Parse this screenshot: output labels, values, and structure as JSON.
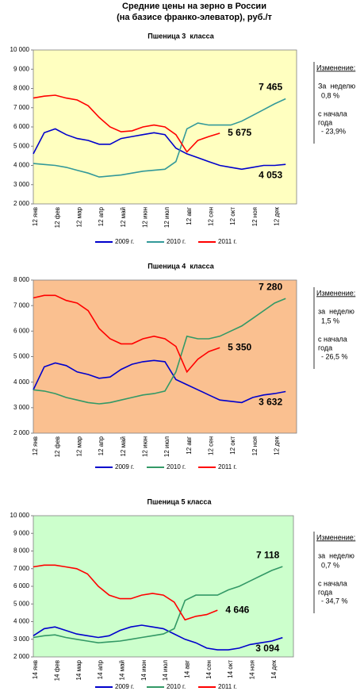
{
  "title": "Средние цены на зерно в России",
  "subtitle": "(на базисе франко-элеватор), руб./т",
  "chart_data": [
    {
      "type": "line",
      "title": "Пшеница 3  класса",
      "background": "#ffffc0",
      "categories": [
        "12 янв",
        null,
        "12 фев",
        null,
        "12 мар",
        null,
        "12 апр",
        null,
        "12 май",
        null,
        "12 июн",
        null,
        "12 июл",
        null,
        "12 авг",
        null,
        "12 сен",
        null,
        "12 окт",
        null,
        "12 ноя",
        null,
        "12 дек",
        null
      ],
      "ylim": [
        2000,
        10000
      ],
      "yticks": [
        {
          "value": 2000,
          "label": "2 000"
        },
        {
          "value": 3000,
          "label": "3 000"
        },
        {
          "value": 4000,
          "label": "4 000"
        },
        {
          "value": 5000,
          "label": "5 000"
        },
        {
          "value": 6000,
          "label": "6 000"
        },
        {
          "value": 7000,
          "label": "7 000"
        },
        {
          "value": 8000,
          "label": "8 000"
        },
        {
          "value": 9000,
          "label": "9 000"
        },
        {
          "value": 10000,
          "label": "10 000"
        }
      ],
      "series": [
        {
          "name": "2009 г.",
          "color": "#0000cc",
          "values": [
            4600,
            5700,
            5900,
            5600,
            5400,
            5300,
            5100,
            5100,
            5400,
            5500,
            5600,
            5700,
            5600,
            4900,
            4600,
            4400,
            4200,
            4000,
            3900,
            3800,
            3900,
            4000,
            4000,
            4053
          ],
          "value_labels": [
            null,
            null,
            null,
            null,
            null,
            null,
            null,
            null,
            null,
            null,
            null,
            null,
            null,
            null,
            null,
            null,
            null,
            null,
            null,
            null,
            null,
            null,
            null,
            "4 053"
          ]
        },
        {
          "name": "2010 г.",
          "color": "#339999",
          "values": [
            4100,
            4050,
            4000,
            3900,
            3750,
            3600,
            3400,
            3450,
            3500,
            3600,
            3700,
            3750,
            3800,
            4200,
            5900,
            6200,
            6100,
            6100,
            6100,
            6300,
            6600,
            6900,
            7200,
            7465
          ],
          "value_labels": [
            null,
            null,
            null,
            null,
            null,
            null,
            null,
            null,
            null,
            null,
            null,
            null,
            null,
            null,
            null,
            null,
            null,
            null,
            null,
            null,
            null,
            null,
            null,
            "7 465"
          ]
        },
        {
          "name": "2011 г.",
          "color": "#ff0000",
          "values": [
            7500,
            7600,
            7650,
            7500,
            7400,
            7100,
            6500,
            6000,
            5750,
            5800,
            6000,
            6100,
            6000,
            5600,
            4700,
            5300,
            5500,
            5675,
            null,
            null,
            null,
            null,
            null,
            null
          ],
          "value_labels": [
            null,
            null,
            null,
            null,
            null,
            null,
            null,
            null,
            null,
            null,
            null,
            null,
            null,
            null,
            null,
            null,
            null,
            "5 675",
            null,
            null,
            null,
            null,
            null,
            null
          ]
        }
      ],
      "annotation": {
        "heading": "Изменение:",
        "week_label": "За  неделю",
        "week_value": "0,8 %",
        "ytd_label_1": "с начала",
        "ytd_label_2": "года",
        "ytd_value": "- 23,9%"
      }
    },
    {
      "type": "line",
      "title": "Пшеница 4  класса",
      "background": "#fac090",
      "categories": [
        "12 янв",
        null,
        "12 фев",
        null,
        "12 мар",
        null,
        "12 апр",
        null,
        "12 май",
        null,
        "12 июн",
        null,
        "12 июл",
        null,
        "12 авг",
        null,
        "12 сен",
        null,
        "12 окт",
        null,
        "12 ноя",
        null,
        "12 дек",
        null
      ],
      "ylim": [
        2000,
        8000
      ],
      "yticks": [
        {
          "value": 2000,
          "label": "2 000"
        },
        {
          "value": 3000,
          "label": "3 000"
        },
        {
          "value": 4000,
          "label": "4 000"
        },
        {
          "value": 5000,
          "label": "5 000"
        },
        {
          "value": 6000,
          "label": "6 000"
        },
        {
          "value": 7000,
          "label": "7 000"
        },
        {
          "value": 8000,
          "label": "8 000"
        }
      ],
      "series": [
        {
          "name": "2009 г.",
          "color": "#0000cc",
          "values": [
            3700,
            4600,
            4750,
            4650,
            4400,
            4300,
            4150,
            4200,
            4500,
            4700,
            4800,
            4850,
            4800,
            4100,
            3900,
            3700,
            3500,
            3300,
            3250,
            3200,
            3400,
            3500,
            3550,
            3632
          ],
          "value_labels": [
            null,
            null,
            null,
            null,
            null,
            null,
            null,
            null,
            null,
            null,
            null,
            null,
            null,
            null,
            null,
            null,
            null,
            null,
            null,
            null,
            null,
            null,
            null,
            "3 632"
          ]
        },
        {
          "name": "2010 г.",
          "color": "#339966",
          "values": [
            3700,
            3650,
            3550,
            3400,
            3300,
            3200,
            3150,
            3200,
            3300,
            3400,
            3500,
            3550,
            3650,
            4400,
            5800,
            5700,
            5700,
            5800,
            6000,
            6200,
            6500,
            6800,
            7100,
            7280
          ],
          "value_labels": [
            null,
            null,
            null,
            null,
            null,
            null,
            null,
            null,
            null,
            null,
            null,
            null,
            null,
            null,
            null,
            null,
            null,
            null,
            null,
            null,
            null,
            null,
            null,
            "7 280"
          ]
        },
        {
          "name": "2011 г.",
          "color": "#ff0000",
          "values": [
            7300,
            7400,
            7400,
            7200,
            7100,
            6800,
            6100,
            5700,
            5500,
            5500,
            5700,
            5800,
            5700,
            5400,
            4400,
            4900,
            5200,
            5350,
            null,
            null,
            null,
            null,
            null,
            null
          ],
          "value_labels": [
            null,
            null,
            null,
            null,
            null,
            null,
            null,
            null,
            null,
            null,
            null,
            null,
            null,
            null,
            null,
            null,
            null,
            "5 350",
            null,
            null,
            null,
            null,
            null,
            null
          ]
        }
      ],
      "annotation": {
        "heading": "Изменение:",
        "week_label": "за  неделю",
        "week_value": "1,5 %",
        "ytd_label_1": "с начала",
        "ytd_label_2": "года",
        "ytd_value": "- 26,5 %"
      }
    },
    {
      "type": "line",
      "title": "Пшеница 5 класса",
      "background": "#ccffcc",
      "categories": [
        "14 янв",
        null,
        "14 фев",
        null,
        "14 мар",
        null,
        "14 апр",
        null,
        "14 май",
        null,
        "14 июн",
        null,
        "14 июл",
        null,
        "14 авг",
        null,
        "14 сен",
        null,
        "14 окт",
        null,
        "14 ноя",
        null,
        "14 дек",
        null
      ],
      "ylim": [
        2000,
        10000
      ],
      "yticks": [
        {
          "value": 2000,
          "label": "2 000"
        },
        {
          "value": 3000,
          "label": "3 000"
        },
        {
          "value": 4000,
          "label": "4 000"
        },
        {
          "value": 5000,
          "label": "5 000"
        },
        {
          "value": 6000,
          "label": "6 000"
        },
        {
          "value": 7000,
          "label": "7 000"
        },
        {
          "value": 8000,
          "label": "8 000"
        },
        {
          "value": 9000,
          "label": "9 000"
        },
        {
          "value": 10000,
          "label": "10 000"
        }
      ],
      "series": [
        {
          "name": "2009 г.",
          "color": "#0000cc",
          "values": [
            3200,
            3600,
            3700,
            3500,
            3300,
            3200,
            3100,
            3200,
            3500,
            3700,
            3800,
            3700,
            3600,
            3300,
            3000,
            2800,
            2500,
            2400,
            2400,
            2500,
            2700,
            2800,
            2900,
            3094
          ],
          "value_labels": [
            null,
            null,
            null,
            null,
            null,
            null,
            null,
            null,
            null,
            null,
            null,
            null,
            null,
            null,
            null,
            null,
            null,
            null,
            null,
            null,
            null,
            null,
            null,
            "3 094"
          ]
        },
        {
          "name": "2010 г.",
          "color": "#339966",
          "values": [
            3100,
            3200,
            3250,
            3100,
            3000,
            2900,
            2800,
            2850,
            2900,
            3000,
            3100,
            3200,
            3300,
            3600,
            5200,
            5500,
            5500,
            5500,
            5800,
            6000,
            6300,
            6600,
            6900,
            7118
          ],
          "value_labels": [
            null,
            null,
            null,
            null,
            null,
            null,
            null,
            null,
            null,
            null,
            null,
            null,
            null,
            null,
            null,
            null,
            null,
            null,
            null,
            null,
            null,
            null,
            null,
            "7 118"
          ]
        },
        {
          "name": "2011 г.",
          "color": "#ff0000",
          "values": [
            7100,
            7200,
            7200,
            7100,
            7000,
            6700,
            6000,
            5500,
            5300,
            5300,
            5500,
            5600,
            5500,
            5100,
            4100,
            4300,
            4400,
            4646,
            null,
            null,
            null,
            null,
            null,
            null
          ],
          "value_labels": [
            null,
            null,
            null,
            null,
            null,
            null,
            null,
            null,
            null,
            null,
            null,
            null,
            null,
            null,
            null,
            null,
            null,
            "4 646",
            null,
            null,
            null,
            null,
            null,
            null
          ]
        }
      ],
      "annotation": {
        "heading": "Изменение:",
        "week_label": "за  неделю",
        "week_value": "0,7 %",
        "ytd_label_1": "с начала",
        "ytd_label_2": "года",
        "ytd_value": "- 34,7 %"
      }
    }
  ]
}
